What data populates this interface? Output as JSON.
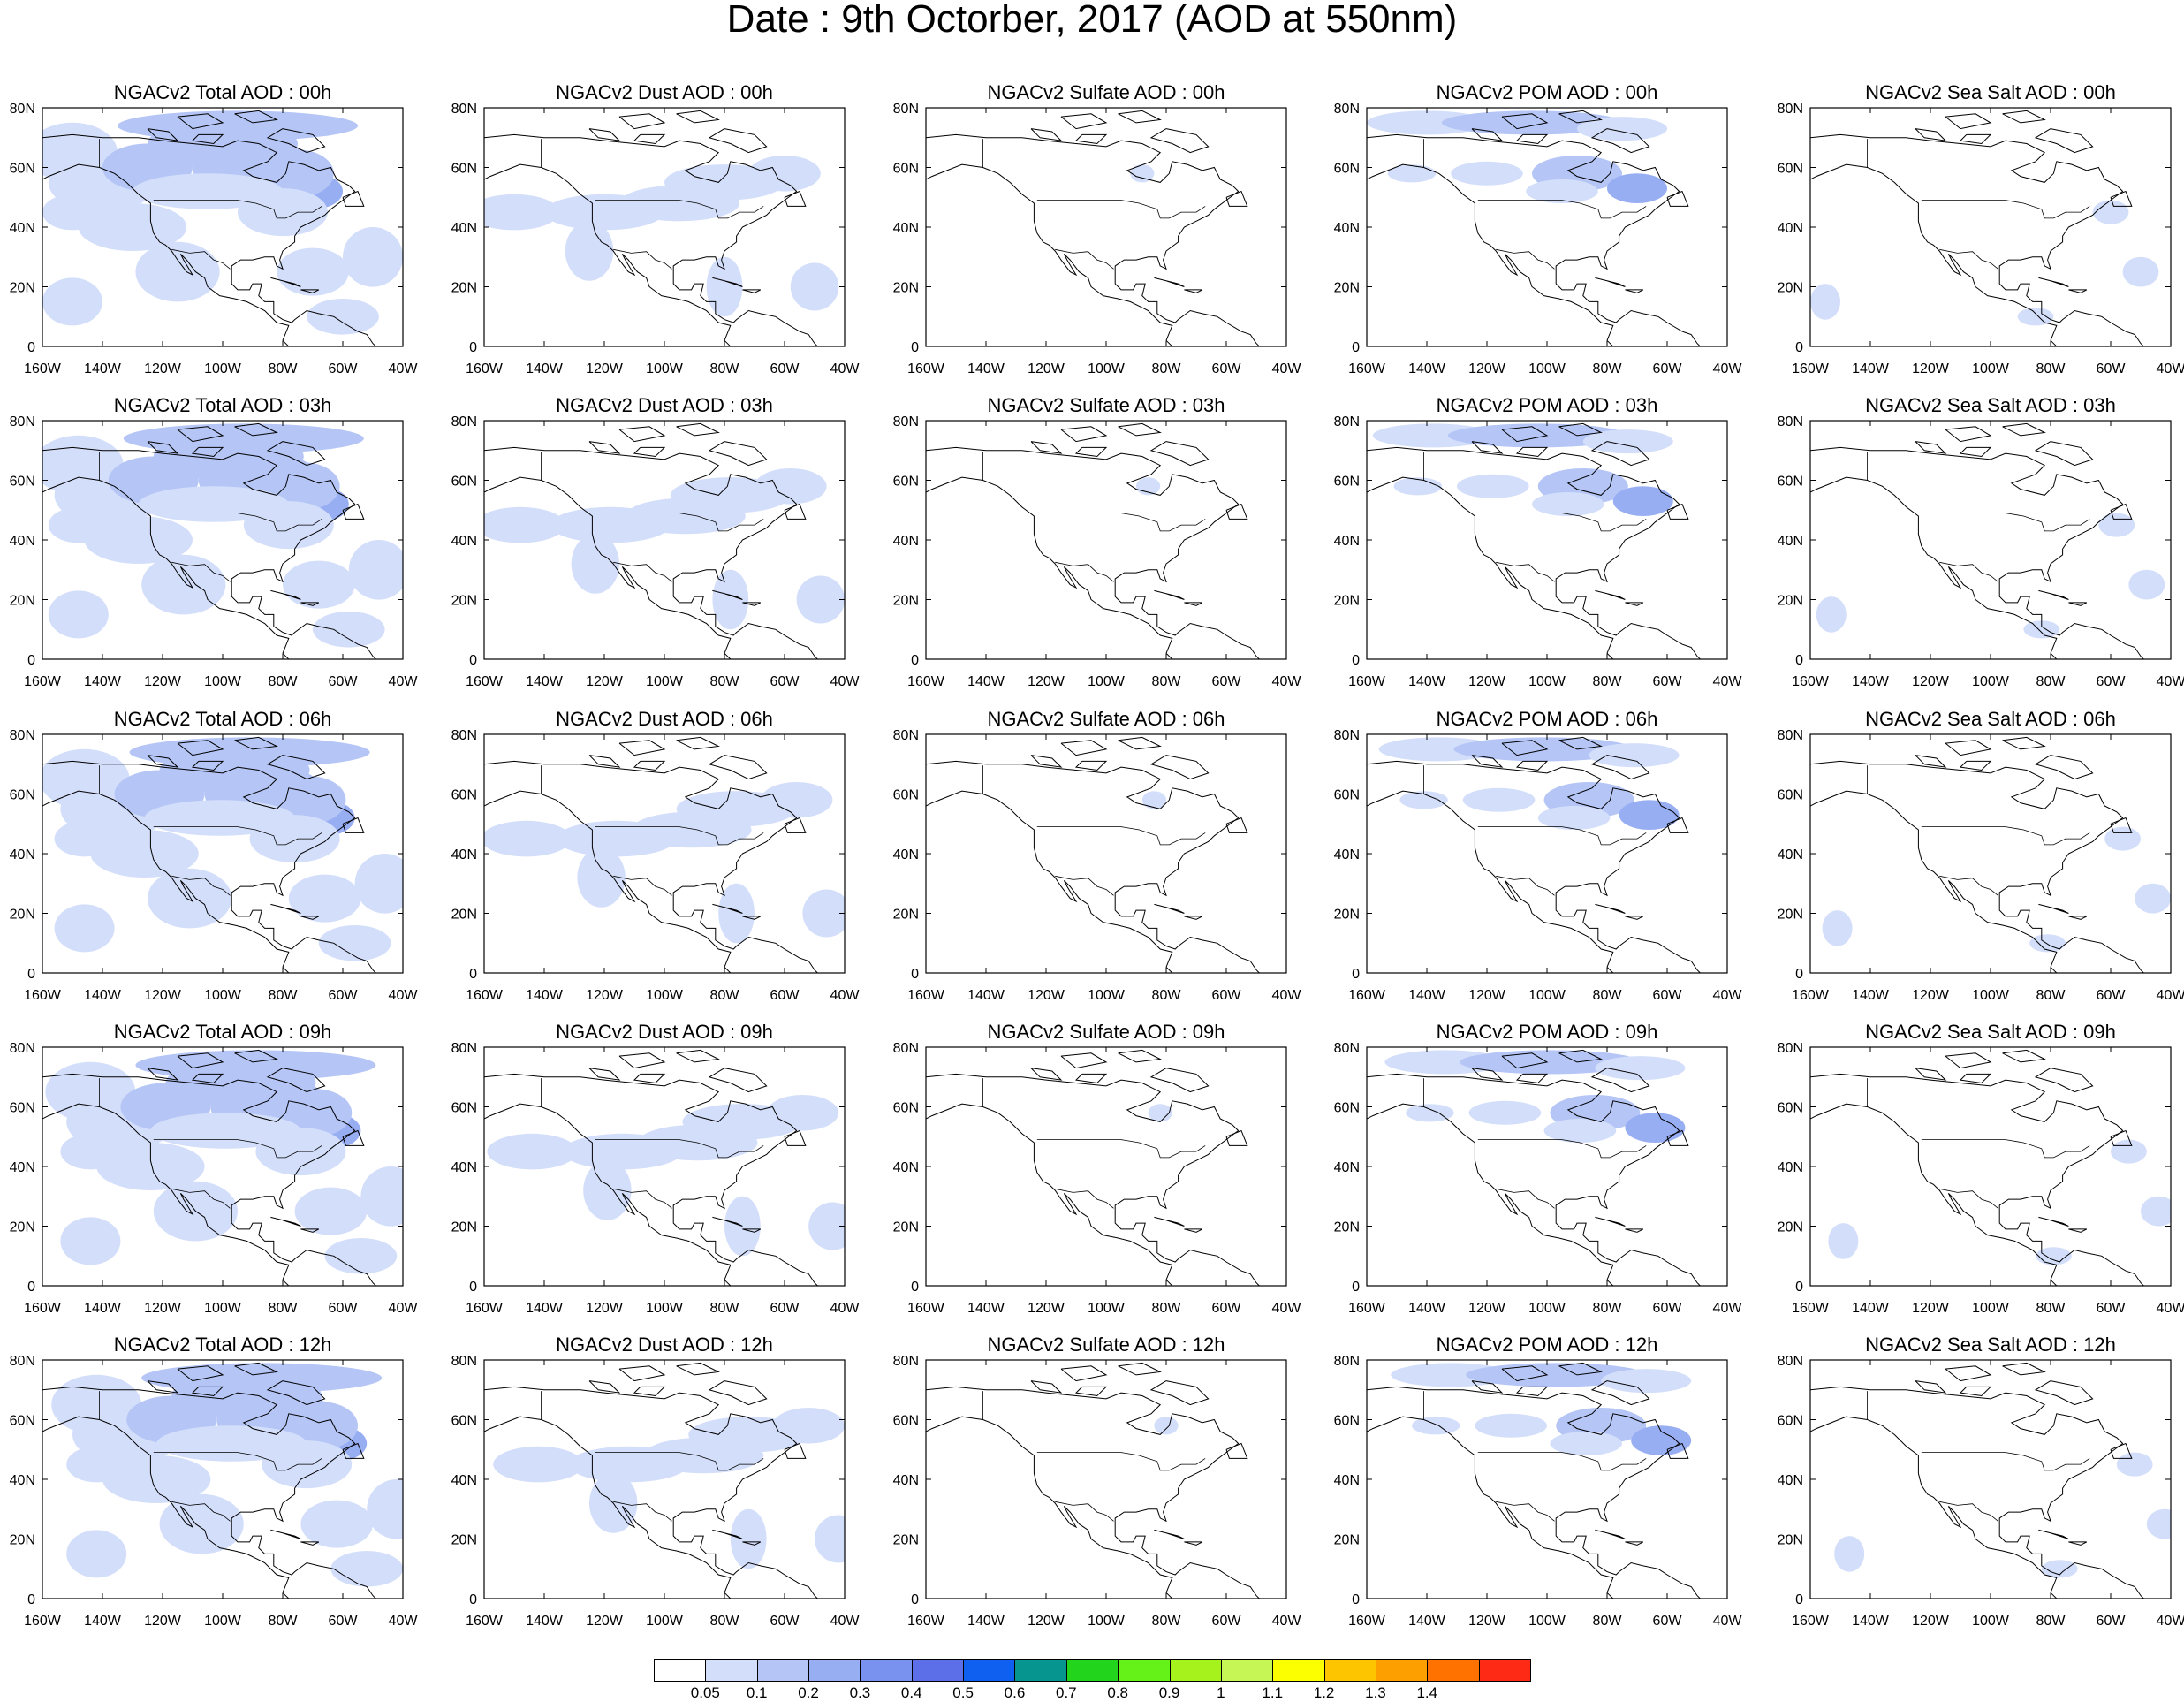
{
  "title": "Date : 9th Octorber, 2017 (AOD at 550nm)",
  "map": {
    "lon_range": [
      -160,
      -40
    ],
    "lat_range": [
      0,
      80
    ],
    "x_ticks": [
      "160W",
      "140W",
      "120W",
      "100W",
      "80W",
      "60W",
      "40W"
    ],
    "y_ticks": [
      "0",
      "20N",
      "40N",
      "60N",
      "80N"
    ],
    "fill_colors": [
      "#d3defa",
      "#b4c5f6",
      "#98aef3"
    ]
  },
  "panels": [
    {
      "title": "NGACv2 Total AOD : 00h",
      "species": "total",
      "hour": "00h"
    },
    {
      "title": "NGACv2 Dust AOD : 00h",
      "species": "dust",
      "hour": "00h"
    },
    {
      "title": "NGACv2 Sulfate AOD : 00h",
      "species": "sulfate",
      "hour": "00h"
    },
    {
      "title": "NGACv2 POM AOD : 00h",
      "species": "pom",
      "hour": "00h"
    },
    {
      "title": "NGACv2 Sea Salt AOD : 00h",
      "species": "seasalt",
      "hour": "00h"
    },
    {
      "title": "NGACv2 Total AOD : 03h",
      "species": "total",
      "hour": "03h"
    },
    {
      "title": "NGACv2 Dust AOD : 03h",
      "species": "dust",
      "hour": "03h"
    },
    {
      "title": "NGACv2 Sulfate AOD : 03h",
      "species": "sulfate",
      "hour": "03h"
    },
    {
      "title": "NGACv2 POM AOD : 03h",
      "species": "pom",
      "hour": "03h"
    },
    {
      "title": "NGACv2 Sea Salt AOD : 03h",
      "species": "seasalt",
      "hour": "03h"
    },
    {
      "title": "NGACv2 Total AOD : 06h",
      "species": "total",
      "hour": "06h"
    },
    {
      "title": "NGACv2 Dust AOD : 06h",
      "species": "dust",
      "hour": "06h"
    },
    {
      "title": "NGACv2 Sulfate AOD : 06h",
      "species": "sulfate",
      "hour": "06h"
    },
    {
      "title": "NGACv2 POM AOD : 06h",
      "species": "pom",
      "hour": "06h"
    },
    {
      "title": "NGACv2 Sea Salt AOD : 06h",
      "species": "seasalt",
      "hour": "06h"
    },
    {
      "title": "NGACv2 Total AOD : 09h",
      "species": "total",
      "hour": "09h"
    },
    {
      "title": "NGACv2 Dust AOD : 09h",
      "species": "dust",
      "hour": "09h"
    },
    {
      "title": "NGACv2 Sulfate AOD : 09h",
      "species": "sulfate",
      "hour": "09h"
    },
    {
      "title": "NGACv2 POM AOD : 09h",
      "species": "pom",
      "hour": "09h"
    },
    {
      "title": "NGACv2 Sea Salt  AOD : 09h",
      "species": "seasalt",
      "hour": "09h"
    },
    {
      "title": "NGACv2 Total AOD  : 12h",
      "species": "total",
      "hour": "12h"
    },
    {
      "title": "NGACv2 Dust AOD : 12h",
      "species": "dust",
      "hour": "12h"
    },
    {
      "title": "NGACv2 Sulfate AOD : 12h",
      "species": "sulfate",
      "hour": "12h"
    },
    {
      "title": "NGACv2 POM  AOD : 12h",
      "species": "pom",
      "hour": "12h"
    },
    {
      "title": "NGACv2 Sea Salt  AOD : 12h",
      "species": "seasalt",
      "hour": "12h"
    }
  ],
  "colorbar": {
    "colors": [
      "#ffffff",
      "#d3defa",
      "#b4c5f6",
      "#98aef3",
      "#7a92ef",
      "#5c6ee8",
      "#0f5ff0",
      "#06958f",
      "#23d41c",
      "#65f218",
      "#a5f21d",
      "#c6f556",
      "#fcff00",
      "#fdc400",
      "#fe9f00",
      "#ff7200",
      "#ff2a15"
    ],
    "labels": [
      "0.05",
      "0.1",
      "0.2",
      "0.3",
      "0.4",
      "0.5",
      "0.6",
      "0.7",
      "0.8",
      "0.9",
      "1",
      "1.1",
      "1.2",
      "1.3",
      "1.4"
    ]
  }
}
